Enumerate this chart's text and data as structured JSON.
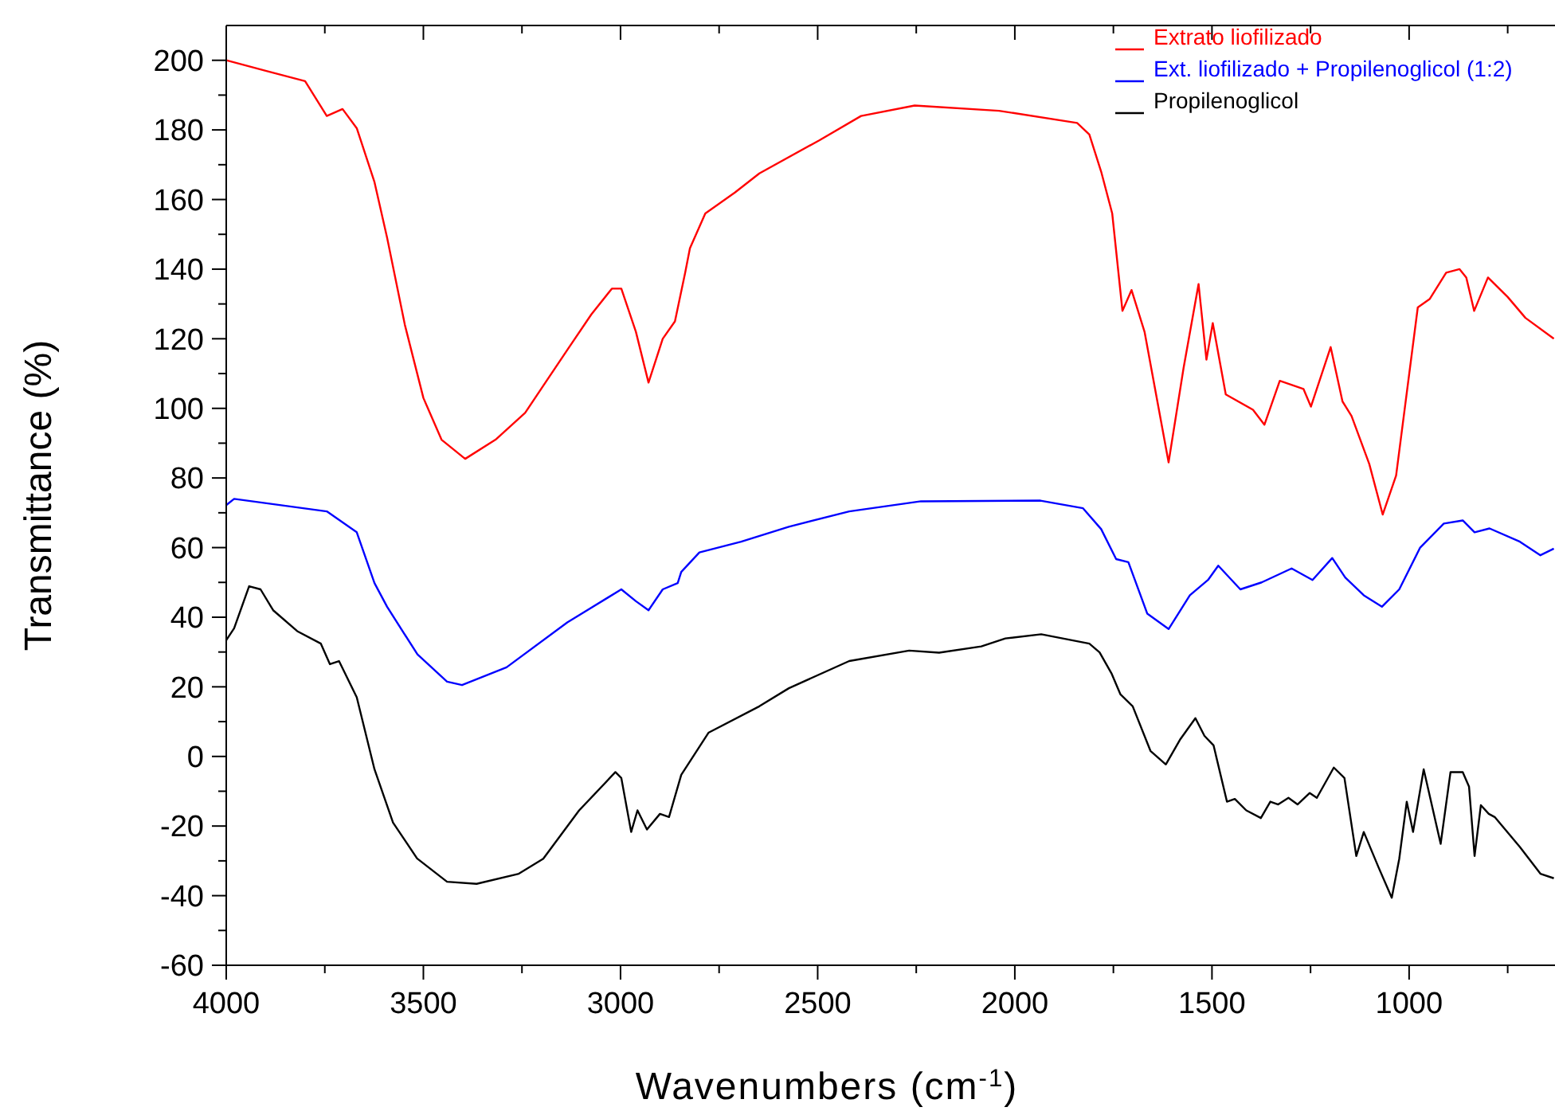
{
  "chart_data": {
    "type": "line",
    "xlabel": "Wavenumbers (cm$^{-1}$)",
    "ylabel": "Transmittance (%)",
    "xlim": [
      4000,
      630
    ],
    "ylim": [
      -60,
      210
    ],
    "xticks": [
      4000,
      {
        "value": 3750,
        "label": null
      },
      3500,
      {
        "value": 3250,
        "label": null
      },
      3000,
      {
        "value": 2750,
        "label": null
      },
      2500,
      {
        "value": 2250,
        "label": null
      },
      2000,
      {
        "value": 1750,
        "label": null
      },
      1500,
      {
        "value": 1250,
        "label": null
      },
      1000,
      {
        "value": 750,
        "label": null
      }
    ],
    "yticks": [
      -60,
      {
        "value": -50,
        "label": null
      },
      -40,
      {
        "value": -30,
        "label": null
      },
      -20,
      {
        "value": -10,
        "label": null
      },
      0,
      {
        "value": 10,
        "label": null
      },
      20,
      {
        "value": 30,
        "label": null
      },
      40,
      {
        "value": 50,
        "label": null
      },
      60,
      {
        "value": 70,
        "label": null
      },
      80,
      {
        "value": 90,
        "label": null
      },
      100,
      {
        "value": 110,
        "label": null
      },
      120,
      {
        "value": 130,
        "label": null
      },
      140,
      {
        "value": 150,
        "label": null
      },
      160,
      {
        "value": 170,
        "label": null
      },
      180,
      {
        "value": 190,
        "label": null
      },
      200
    ],
    "grid": false,
    "legend": "top right",
    "marker": "none",
    "line_style": "solid",
    "series": [
      {
        "name": "Extrato liofilizado",
        "color": "#ff0000",
        "x": [
          4000,
          3900,
          3800,
          3745,
          3705,
          3669,
          3624,
          3592,
          3547,
          3500,
          3454,
          3394,
          3317,
          3242,
          3196,
          3135,
          3074,
          3022,
          2998,
          2961,
          2929,
          2893,
          2862,
          2836,
          2824,
          2785,
          2710,
          2648,
          2496,
          2390,
          2254,
          2040,
          1842,
          1811,
          1781,
          1753,
          1727,
          1704,
          1671,
          1610,
          1572,
          1534,
          1514,
          1498,
          1465,
          1396,
          1367,
          1328,
          1268,
          1249,
          1199,
          1169,
          1146,
          1101,
          1067,
          1033,
          978,
          948,
          906,
          872,
          855,
          835,
          800,
          750,
          705,
          633
        ],
        "values": [
          200,
          197,
          194,
          184,
          186,
          180.5,
          165,
          149,
          124,
          103,
          91,
          85.5,
          91,
          98.7,
          106.5,
          116.8,
          127,
          134.4,
          134.4,
          122,
          107.4,
          120,
          125,
          139,
          146,
          156,
          162,
          167.5,
          177,
          184,
          187,
          185.5,
          182,
          178.7,
          168,
          156,
          128,
          134,
          122,
          84.5,
          111.6,
          135.7,
          114,
          124.5,
          104,
          99.6,
          95.3,
          107.9,
          105.6,
          100.5,
          117.6,
          102,
          97.8,
          84,
          69.5,
          80.7,
          129,
          131.4,
          139,
          140,
          137.6,
          128,
          137.6,
          132,
          126,
          120
        ]
      },
      {
        "name": "Ext. liofilizado + Propilenoglicol (1:2)",
        "color": "#0000ff",
        "x": [
          4000,
          3980,
          3745,
          3669,
          3624,
          3592,
          3515,
          3440,
          3402,
          3289,
          3135,
          2998,
          2961,
          2929,
          2893,
          2855,
          2846,
          2800,
          2694,
          2573,
          2420,
          2238,
          1935,
          1827,
          1781,
          1743,
          1712,
          1664,
          1610,
          1556,
          1510,
          1484,
          1428,
          1374,
          1298,
          1245,
          1195,
          1162,
          1115,
          1069,
          1025,
          972,
          912,
          864,
          834,
          796,
          719,
          667,
          633
        ],
        "values": [
          72.2,
          74,
          70.4,
          64.4,
          49.8,
          43,
          29.3,
          21.5,
          20.5,
          25.6,
          38.5,
          48,
          44.6,
          42,
          48,
          49.8,
          53,
          58.6,
          61.7,
          66,
          70.4,
          73.3,
          73.5,
          71.3,
          65.3,
          56.7,
          55.8,
          41,
          36.6,
          46.3,
          50.7,
          54.8,
          48,
          50,
          54,
          50.7,
          57,
          51.4,
          46.3,
          43,
          48,
          60,
          66.9,
          67.8,
          64.4,
          65.5,
          61.7,
          57.8,
          59.7
        ]
      },
      {
        "name": "Propilenoglicol",
        "color": "#000000",
        "x": [
          4000,
          3980,
          3942,
          3913,
          3881,
          3820,
          3760,
          3737,
          3714,
          3669,
          3624,
          3577,
          3516,
          3440,
          3365,
          3258,
          3196,
          3105,
          3013,
          2998,
          2973,
          2957,
          2933,
          2900,
          2877,
          2846,
          2777,
          2648,
          2573,
          2420,
          2268,
          2192,
          2085,
          2024,
          1933,
          1811,
          1785,
          1755,
          1732,
          1701,
          1656,
          1617,
          1580,
          1542,
          1519,
          1496,
          1462,
          1442,
          1413,
          1376,
          1352,
          1332,
          1306,
          1283,
          1252,
          1234,
          1191,
          1164,
          1134,
          1115,
          1077,
          1044,
          1025,
          1006,
          990,
          963,
          920,
          895,
          864,
          848,
          834,
          818,
          798,
          783,
          719,
          667,
          633
        ],
        "values": [
          33.4,
          36.8,
          48.9,
          48,
          42,
          36,
          32.4,
          26.5,
          27.4,
          17,
          -3.7,
          -19,
          -29.3,
          -36,
          -36.6,
          -33.7,
          -29.4,
          -15.5,
          -4.5,
          -6.2,
          -21.7,
          -15.5,
          -21,
          -16.5,
          -17.4,
          -5.3,
          6.8,
          14.4,
          19.6,
          27.4,
          30.4,
          29.8,
          31.6,
          33.9,
          35.1,
          32.4,
          29.9,
          23.9,
          17.8,
          14.4,
          1.6,
          -2.3,
          5,
          11,
          5.9,
          3.2,
          -13,
          -12.2,
          -15.5,
          -17.7,
          -13,
          -13.8,
          -11.9,
          -13.8,
          -10.5,
          -11.9,
          -3.2,
          -6.2,
          -28.6,
          -21.7,
          -32,
          -40.6,
          -29.4,
          -13,
          -21.7,
          -3.7,
          -25.1,
          -4.5,
          -4.5,
          -8.7,
          -28.6,
          -14,
          -16.5,
          -17.4,
          -26,
          -33.7,
          -35
        ]
      }
    ]
  }
}
